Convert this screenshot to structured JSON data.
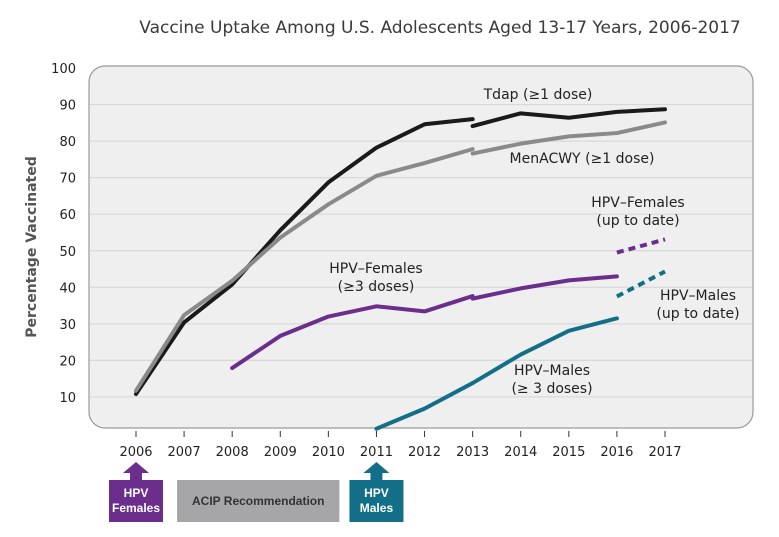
{
  "chart_data": {
    "type": "line",
    "title": "Vaccine Uptake Among U.S. Adolescents Aged 13-17 Years, 2006-2017",
    "xlabel": "",
    "ylabel": "Percentage Vaccinated",
    "ylim": [
      0,
      100
    ],
    "yticks": [
      10,
      20,
      30,
      40,
      50,
      60,
      70,
      80,
      90,
      100
    ],
    "categories": [
      "2006",
      "2007",
      "2008",
      "2009",
      "2010",
      "2011",
      "2012",
      "2013",
      "2014",
      "2015",
      "2016",
      "2017"
    ],
    "grid": true,
    "series": [
      {
        "name": "Tdap (≥1 dose)",
        "label_lines": [
          "Tdap (≥1 dose)"
        ],
        "color": "#1a1a1a",
        "style": "solid",
        "segments": [
          {
            "x": [
              "2006",
              "2007",
              "2008",
              "2009",
              "2010",
              "2011",
              "2012",
              "2013"
            ],
            "values": [
              10.8,
              30.4,
              40.8,
              55.6,
              68.7,
              78.2,
              84.6,
              86.0
            ]
          },
          {
            "x": [
              "2013",
              "2014",
              "2015",
              "2016",
              "2017"
            ],
            "values": [
              84.1,
              87.6,
              86.4,
              88.0,
              88.7
            ]
          }
        ]
      },
      {
        "name": "MenACWY (≥1 dose)",
        "label_lines": [
          "MenACWY (≥1 dose)"
        ],
        "color": "#8a8a8a",
        "style": "solid",
        "segments": [
          {
            "x": [
              "2006",
              "2007",
              "2008",
              "2009",
              "2010",
              "2011",
              "2012",
              "2013"
            ],
            "values": [
              11.7,
              32.4,
              41.8,
              53.6,
              62.7,
              70.5,
              74.0,
              77.8
            ]
          },
          {
            "x": [
              "2013",
              "2014",
              "2015",
              "2016",
              "2017"
            ],
            "values": [
              76.6,
              79.3,
              81.3,
              82.2,
              85.1
            ]
          }
        ]
      },
      {
        "name": "HPV–Females (≥3 doses)",
        "label_lines": [
          "HPV–Females",
          "(≥3 doses)"
        ],
        "color": "#6b2e8c",
        "style": "solid",
        "segments": [
          {
            "x": [
              "2008",
              "2009",
              "2010",
              "2011",
              "2012",
              "2013"
            ],
            "values": [
              17.9,
              26.7,
              32.0,
              34.8,
              33.4,
              37.6
            ]
          },
          {
            "x": [
              "2013",
              "2014",
              "2015",
              "2016"
            ],
            "values": [
              36.9,
              39.7,
              41.9,
              43.0
            ]
          }
        ]
      },
      {
        "name": "HPV–Males (≥ 3 doses)",
        "label_lines": [
          "HPV–Males",
          "(≥ 3 doses)"
        ],
        "color": "#136f87",
        "style": "solid",
        "segments": [
          {
            "x": [
              "2011",
              "2012",
              "2013"
            ],
            "values": [
              1.3,
              6.8,
              13.8
            ]
          },
          {
            "x": [
              "2013",
              "2014",
              "2015",
              "2016"
            ],
            "values": [
              13.8,
              21.6,
              28.1,
              31.5
            ]
          }
        ]
      },
      {
        "name": "HPV–Females (up to date)",
        "label_lines": [
          "HPV–Females",
          "(up to date)"
        ],
        "color": "#6b2e8c",
        "style": "dashed",
        "segments": [
          {
            "x": [
              "2016",
              "2017"
            ],
            "values": [
              49.5,
              53.1
            ]
          }
        ]
      },
      {
        "name": "HPV–Males (up to date)",
        "label_lines": [
          "HPV–Males",
          "(up to date)"
        ],
        "color": "#136f87",
        "style": "dashed",
        "segments": [
          {
            "x": [
              "2016",
              "2017"
            ],
            "values": [
              37.5,
              44.3
            ]
          }
        ]
      }
    ],
    "annotations": [
      {
        "year": "2006",
        "lines": [
          "HPV",
          "Females"
        ],
        "color": "#6b2e8c",
        "type": "arrow-box"
      },
      {
        "from_year": "2007",
        "to_year": "2010",
        "lines": [
          "ACIP Recommendation"
        ],
        "color": "#a6a6a8",
        "type": "box"
      },
      {
        "year": "2011",
        "lines": [
          "HPV",
          "Males"
        ],
        "color": "#136f87",
        "type": "arrow-box"
      }
    ],
    "colors": {
      "plot_background": "#efefef",
      "gridline": "#d8d8d8",
      "frame": "#9a9a9a"
    }
  }
}
